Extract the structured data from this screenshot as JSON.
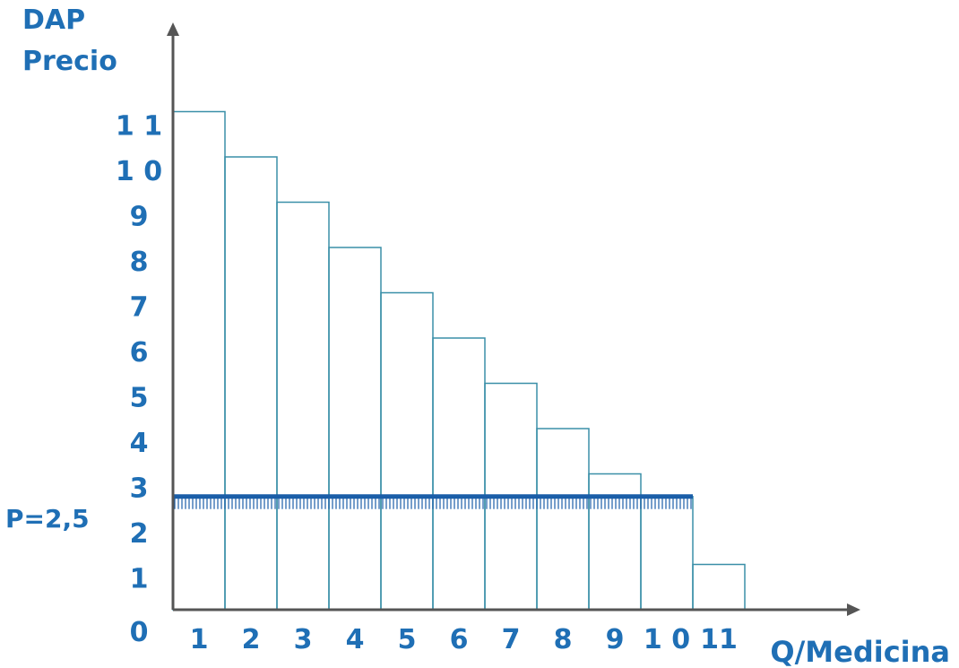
{
  "chart_data": {
    "type": "bar",
    "y_title_line1": "DAP",
    "y_title_line2": "Precio",
    "xlabel": "Q/Medicina",
    "price_label": "P=2,5",
    "price_value": 2.5,
    "x_ticks": [
      "1",
      "2",
      "3",
      "4",
      "5",
      "6",
      "7",
      "8",
      "9",
      "1 0",
      "11"
    ],
    "y_ticks": [
      "0",
      "1",
      "2",
      "3",
      "4",
      "5",
      "6",
      "7",
      "8",
      "9",
      "1 0",
      "1 1"
    ],
    "categories": [
      1,
      2,
      3,
      4,
      5,
      6,
      7,
      8,
      9,
      10,
      11
    ],
    "values": [
      11,
      10,
      9,
      8,
      7,
      6,
      5,
      4,
      3,
      2.5,
      1
    ],
    "ylim": [
      0,
      11.5
    ],
    "xlim": [
      0,
      11
    ],
    "grid": false
  },
  "colors": {
    "label": "#1f6fb5",
    "axis": "#555555",
    "bar_stroke": "#3a8fa8",
    "price_line": "#1a5ea8"
  }
}
